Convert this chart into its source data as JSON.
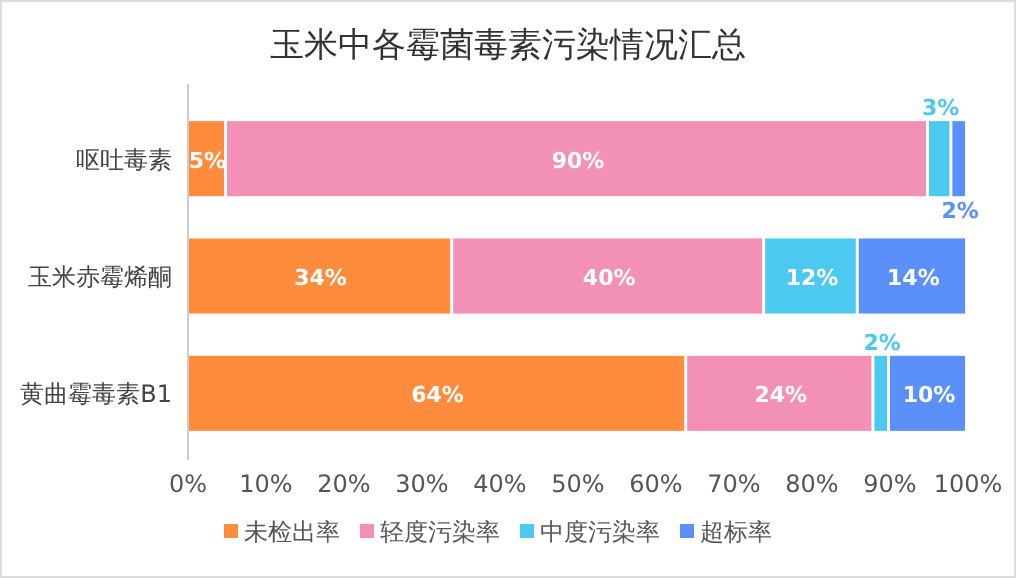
{
  "chart_data": {
    "type": "bar",
    "orientation": "horizontal",
    "stacked": true,
    "title": "玉米中各霉菌毒素污染情况汇总",
    "categories": [
      "呕吐毒素",
      "玉米赤霉烯酮",
      "黄曲霉毒素B1"
    ],
    "series": [
      {
        "name": "未检出率",
        "color": "#ff8c3c",
        "values": [
          5,
          34,
          64
        ],
        "value_labels": [
          "5%",
          "34%",
          "64%"
        ]
      },
      {
        "name": "轻度污染率",
        "color": "#f291b5",
        "values": [
          90,
          40,
          24
        ],
        "value_labels": [
          "90%",
          "40%",
          "24%"
        ]
      },
      {
        "name": "中度污染率",
        "color": "#4cc9f0",
        "values": [
          3,
          12,
          2
        ],
        "value_labels": [
          "3%",
          "12%",
          "2%"
        ]
      },
      {
        "name": "超标率",
        "color": "#5b8ff9",
        "values": [
          2,
          14,
          10
        ],
        "value_labels": [
          "2%",
          "14%",
          "10%"
        ]
      }
    ],
    "xlim": [
      0,
      100
    ],
    "xticks": [
      {
        "value": 0,
        "label": "0%"
      },
      {
        "value": 10,
        "label": "10%"
      },
      {
        "value": 20,
        "label": "20%"
      },
      {
        "value": 30,
        "label": "30%"
      },
      {
        "value": 40,
        "label": "40%"
      },
      {
        "value": 50,
        "label": "50%"
      },
      {
        "value": 60,
        "label": "60%"
      },
      {
        "value": 70,
        "label": "70%"
      },
      {
        "value": 80,
        "label": "80%"
      },
      {
        "value": 90,
        "label": "90%"
      },
      {
        "value": 100,
        "label": "100%"
      }
    ],
    "legend": "bottom"
  }
}
